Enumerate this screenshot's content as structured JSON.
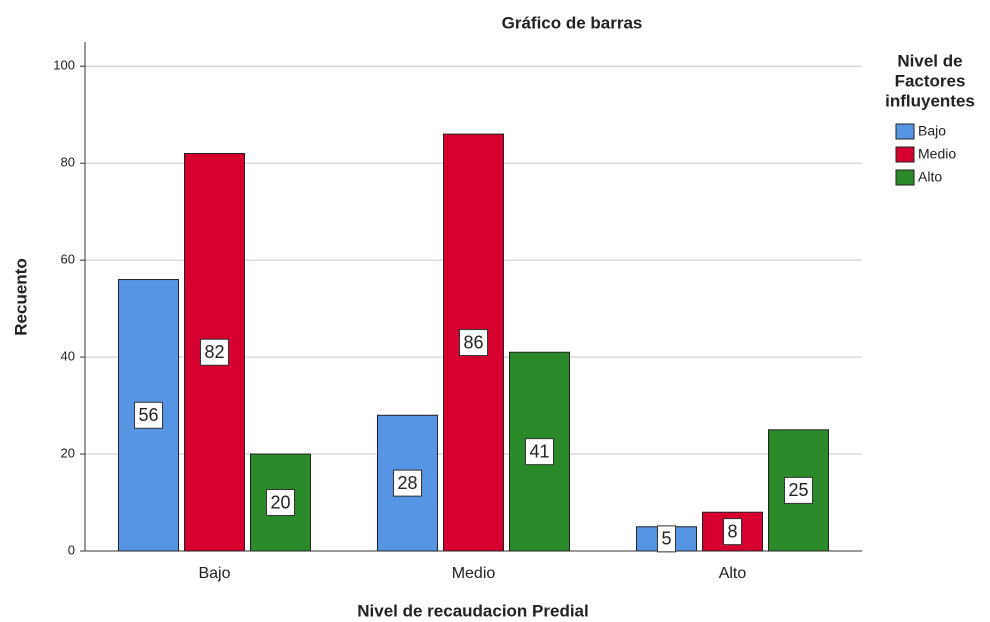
{
  "chart_data": {
    "type": "bar",
    "title": "Gráfico de barras",
    "x_label": "Nivel de recaudacion Predial",
    "y_label": "Recuento",
    "legend_title": [
      "Nivel de",
      "Factores",
      "influyentes"
    ],
    "categories": [
      "Bajo",
      "Medio",
      "Alto"
    ],
    "series": [
      {
        "name": "Bajo",
        "color": "#5595e3",
        "values": [
          56,
          28,
          5
        ]
      },
      {
        "name": "Medio",
        "color": "#d5002e",
        "values": [
          82,
          86,
          8
        ]
      },
      {
        "name": "Alto",
        "color": "#2a8a2a",
        "values": [
          20,
          41,
          25
        ]
      }
    ],
    "ylim": [
      0,
      105
    ],
    "yticks": [
      0,
      20,
      40,
      60,
      80,
      100
    ],
    "grid": true,
    "legend": "right"
  }
}
